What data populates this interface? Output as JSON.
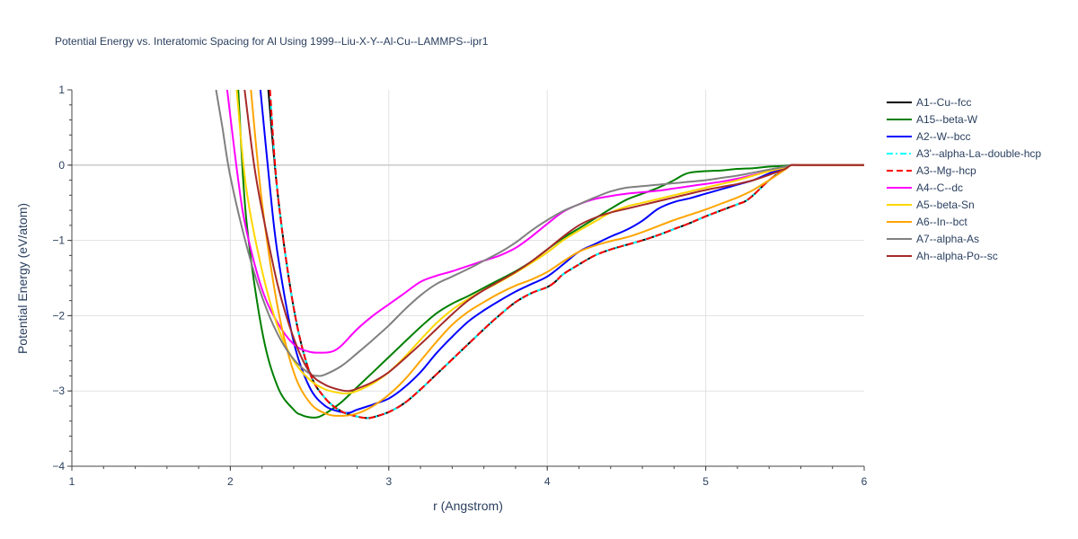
{
  "chart_data": {
    "type": "line",
    "title": "Potential Energy vs. Interatomic Spacing for Al Using 1999--Liu-X-Y--Al-Cu--LAMMPS--ipr1",
    "xlabel": "r (Angstrom)",
    "ylabel": "Potential Energy (eV/atom)",
    "xlim": [
      1,
      6
    ],
    "ylim": [
      -4,
      1
    ],
    "x_ticks": [
      "1",
      "2",
      "3",
      "4",
      "5",
      "6"
    ],
    "y_ticks": [
      "1",
      "0",
      "−1",
      "−2",
      "−3",
      "−4"
    ],
    "grid": true,
    "legend_position": "right",
    "series": [
      {
        "name": "A1--Cu--fcc",
        "color": "#000000",
        "dash": "solid",
        "x": [
          2.24,
          2.3,
          2.4,
          2.5,
          2.6,
          2.7,
          2.8,
          2.86,
          2.9,
          3.0,
          3.1,
          3.2,
          3.3,
          3.4,
          3.5,
          3.6,
          3.7,
          3.8,
          3.9,
          4.0,
          4.05,
          4.1,
          4.2,
          4.3,
          4.4,
          4.5,
          4.6,
          4.7,
          4.8,
          4.9,
          5.0,
          5.1,
          5.2,
          5.25,
          5.3,
          5.4,
          5.5,
          5.54,
          5.6,
          5.7,
          5.8,
          5.9,
          6.0
        ],
        "y": [
          1.0,
          -0.4,
          -1.9,
          -2.75,
          -3.1,
          -3.27,
          -3.34,
          -3.36,
          -3.35,
          -3.28,
          -3.16,
          -2.98,
          -2.78,
          -2.58,
          -2.38,
          -2.18,
          -1.99,
          -1.82,
          -1.7,
          -1.62,
          -1.55,
          -1.45,
          -1.32,
          -1.2,
          -1.12,
          -1.06,
          -1.0,
          -0.93,
          -0.85,
          -0.77,
          -0.68,
          -0.6,
          -0.52,
          -0.48,
          -0.4,
          -0.2,
          -0.05,
          0.0,
          0.0,
          0.0,
          0.0,
          0.0,
          0.0
        ]
      },
      {
        "name": "A15--beta-W",
        "color": "#008000",
        "dash": "solid",
        "x": [
          2.05,
          2.1,
          2.2,
          2.3,
          2.4,
          2.45,
          2.5,
          2.55,
          2.6,
          2.7,
          2.8,
          2.9,
          3.0,
          3.1,
          3.2,
          3.3,
          3.4,
          3.5,
          3.6,
          3.7,
          3.8,
          3.9,
          4.0,
          4.1,
          4.2,
          4.3,
          4.4,
          4.5,
          4.6,
          4.7,
          4.8,
          4.85,
          4.9,
          5.0,
          5.1,
          5.2,
          5.3,
          5.4,
          5.5,
          5.54,
          5.6,
          5.7,
          5.8,
          5.9,
          6.0
        ],
        "y": [
          1.0,
          -0.7,
          -2.2,
          -2.95,
          -3.25,
          -3.32,
          -3.35,
          -3.35,
          -3.3,
          -3.15,
          -2.95,
          -2.75,
          -2.55,
          -2.35,
          -2.15,
          -1.97,
          -1.84,
          -1.74,
          -1.63,
          -1.52,
          -1.41,
          -1.28,
          -1.12,
          -0.97,
          -0.84,
          -0.71,
          -0.58,
          -0.46,
          -0.38,
          -0.3,
          -0.2,
          -0.14,
          -0.1,
          -0.08,
          -0.07,
          -0.05,
          -0.04,
          -0.02,
          -0.01,
          0.0,
          0.0,
          0.0,
          0.0,
          0.0,
          0.0
        ]
      },
      {
        "name": "A2--W--bcc",
        "color": "#0000ff",
        "dash": "solid",
        "x": [
          2.19,
          2.25,
          2.3,
          2.4,
          2.5,
          2.6,
          2.7,
          2.75,
          2.8,
          2.9,
          3.0,
          3.1,
          3.2,
          3.3,
          3.4,
          3.5,
          3.6,
          3.7,
          3.8,
          3.9,
          4.0,
          4.1,
          4.2,
          4.3,
          4.4,
          4.5,
          4.6,
          4.7,
          4.8,
          4.9,
          5.0,
          5.1,
          5.2,
          5.3,
          5.4,
          5.5,
          5.54,
          5.6,
          5.7,
          5.8,
          5.9,
          6.0
        ],
        "y": [
          1.0,
          -0.3,
          -1.2,
          -2.35,
          -2.95,
          -3.2,
          -3.28,
          -3.29,
          -3.25,
          -3.18,
          -3.1,
          -2.95,
          -2.75,
          -2.5,
          -2.28,
          -2.08,
          -1.93,
          -1.8,
          -1.68,
          -1.58,
          -1.48,
          -1.32,
          -1.15,
          -1.05,
          -0.95,
          -0.86,
          -0.74,
          -0.58,
          -0.49,
          -0.44,
          -0.38,
          -0.32,
          -0.26,
          -0.2,
          -0.11,
          -0.03,
          0.0,
          0.0,
          0.0,
          0.0,
          0.0,
          0.0
        ]
      },
      {
        "name": "A3'--alpha-La--double-hcp",
        "color": "#00ffff",
        "dash": "dashdot",
        "x": [
          2.25,
          2.3,
          2.4,
          2.5,
          2.6,
          2.7,
          2.8,
          2.86,
          2.9,
          3.0,
          3.1,
          3.2,
          3.3,
          3.4,
          3.5,
          3.6,
          3.7,
          3.8,
          3.9,
          4.0,
          4.05,
          4.1,
          4.2,
          4.3,
          4.4,
          4.5,
          4.6,
          4.7,
          4.8,
          4.9,
          5.0,
          5.1,
          5.2,
          5.25,
          5.3,
          5.4,
          5.5,
          5.54,
          5.6,
          5.7,
          5.8,
          5.9,
          6.0
        ],
        "y": [
          1.0,
          -0.4,
          -1.9,
          -2.75,
          -3.1,
          -3.27,
          -3.34,
          -3.36,
          -3.35,
          -3.28,
          -3.16,
          -2.98,
          -2.78,
          -2.58,
          -2.38,
          -2.18,
          -1.99,
          -1.82,
          -1.7,
          -1.62,
          -1.55,
          -1.45,
          -1.32,
          -1.2,
          -1.12,
          -1.06,
          -1.0,
          -0.93,
          -0.85,
          -0.77,
          -0.68,
          -0.6,
          -0.52,
          -0.48,
          -0.4,
          -0.2,
          -0.05,
          0.0,
          0.0,
          0.0,
          0.0,
          0.0,
          0.0
        ]
      },
      {
        "name": "A3--Mg--hcp",
        "color": "#ff0000",
        "dash": "dash",
        "x": [
          2.25,
          2.3,
          2.4,
          2.5,
          2.6,
          2.7,
          2.8,
          2.86,
          2.9,
          3.0,
          3.1,
          3.2,
          3.3,
          3.4,
          3.5,
          3.6,
          3.7,
          3.8,
          3.9,
          4.0,
          4.05,
          4.1,
          4.2,
          4.3,
          4.4,
          4.5,
          4.6,
          4.7,
          4.8,
          4.9,
          5.0,
          5.1,
          5.2,
          5.25,
          5.3,
          5.4,
          5.5,
          5.54,
          5.6,
          5.7,
          5.8,
          5.9,
          6.0
        ],
        "y": [
          1.0,
          -0.4,
          -1.9,
          -2.75,
          -3.1,
          -3.27,
          -3.34,
          -3.36,
          -3.35,
          -3.28,
          -3.16,
          -2.98,
          -2.78,
          -2.58,
          -2.38,
          -2.18,
          -1.99,
          -1.82,
          -1.7,
          -1.62,
          -1.55,
          -1.45,
          -1.32,
          -1.2,
          -1.12,
          -1.06,
          -1.0,
          -0.93,
          -0.85,
          -0.77,
          -0.68,
          -0.6,
          -0.52,
          -0.48,
          -0.4,
          -0.2,
          -0.05,
          0.0,
          0.0,
          0.0,
          0.0,
          0.0,
          0.0
        ]
      },
      {
        "name": "A4--C--dc",
        "color": "#ff00ff",
        "dash": "solid",
        "x": [
          1.98,
          2.05,
          2.1,
          2.2,
          2.3,
          2.4,
          2.5,
          2.6,
          2.65,
          2.7,
          2.8,
          2.9,
          3.0,
          3.1,
          3.2,
          3.3,
          3.4,
          3.5,
          3.6,
          3.7,
          3.8,
          3.9,
          4.0,
          4.1,
          4.2,
          4.3,
          4.4,
          4.5,
          4.6,
          4.7,
          4.8,
          4.9,
          5.0,
          5.1,
          5.2,
          5.3,
          5.4,
          5.5,
          5.54,
          5.6,
          5.7,
          5.8,
          5.9,
          6.0
        ],
        "y": [
          1.0,
          -0.2,
          -0.85,
          -1.65,
          -2.1,
          -2.38,
          -2.48,
          -2.49,
          -2.47,
          -2.4,
          -2.18,
          -2.0,
          -1.85,
          -1.7,
          -1.55,
          -1.47,
          -1.41,
          -1.34,
          -1.27,
          -1.2,
          -1.1,
          -0.95,
          -0.78,
          -0.62,
          -0.52,
          -0.45,
          -0.41,
          -0.38,
          -0.36,
          -0.34,
          -0.31,
          -0.28,
          -0.25,
          -0.22,
          -0.18,
          -0.13,
          -0.08,
          -0.03,
          0.0,
          0.0,
          0.0,
          0.0,
          0.0,
          0.0
        ]
      },
      {
        "name": "A5--beta-Sn",
        "color": "#ffd700",
        "dash": "solid",
        "x": [
          2.04,
          2.1,
          2.2,
          2.3,
          2.4,
          2.5,
          2.6,
          2.7,
          2.75,
          2.8,
          2.9,
          3.0,
          3.1,
          3.2,
          3.3,
          3.4,
          3.5,
          3.6,
          3.7,
          3.8,
          3.9,
          4.0,
          4.1,
          4.2,
          4.3,
          4.4,
          4.5,
          4.6,
          4.7,
          4.8,
          4.9,
          5.0,
          5.1,
          5.2,
          5.3,
          5.4,
          5.5,
          5.54,
          5.6,
          5.7,
          5.8,
          5.9,
          6.0
        ],
        "y": [
          1.0,
          -0.3,
          -1.4,
          -2.15,
          -2.6,
          -2.85,
          -2.98,
          -3.03,
          -3.03,
          -3.0,
          -2.9,
          -2.75,
          -2.55,
          -2.32,
          -2.1,
          -1.92,
          -1.78,
          -1.66,
          -1.55,
          -1.43,
          -1.3,
          -1.16,
          -1.0,
          -0.87,
          -0.75,
          -0.63,
          -0.55,
          -0.5,
          -0.45,
          -0.4,
          -0.35,
          -0.3,
          -0.25,
          -0.2,
          -0.14,
          -0.08,
          -0.03,
          0.0,
          0.0,
          0.0,
          0.0,
          0.0,
          0.0
        ]
      },
      {
        "name": "A6--In--bct",
        "color": "#ffa500",
        "dash": "solid",
        "x": [
          2.13,
          2.2,
          2.3,
          2.4,
          2.5,
          2.6,
          2.7,
          2.8,
          2.9,
          3.0,
          3.1,
          3.2,
          3.3,
          3.4,
          3.5,
          3.6,
          3.7,
          3.8,
          3.9,
          4.0,
          4.1,
          4.2,
          4.3,
          4.4,
          4.5,
          4.6,
          4.7,
          4.8,
          4.9,
          5.0,
          5.1,
          5.2,
          5.3,
          5.4,
          5.5,
          5.54,
          5.6,
          5.7,
          5.8,
          5.9,
          6.0
        ],
        "y": [
          1.0,
          -0.5,
          -1.9,
          -2.75,
          -3.15,
          -3.3,
          -3.33,
          -3.3,
          -3.2,
          -3.05,
          -2.85,
          -2.6,
          -2.35,
          -2.12,
          -1.95,
          -1.82,
          -1.7,
          -1.6,
          -1.52,
          -1.42,
          -1.28,
          -1.15,
          -1.07,
          -1.01,
          -0.96,
          -0.89,
          -0.81,
          -0.73,
          -0.66,
          -0.59,
          -0.51,
          -0.43,
          -0.33,
          -0.2,
          -0.06,
          0.0,
          0.0,
          0.0,
          0.0,
          0.0,
          0.0
        ]
      },
      {
        "name": "A7--alpha-As",
        "color": "#808080",
        "dash": "solid",
        "x": [
          1.91,
          1.95,
          2.0,
          2.1,
          2.2,
          2.3,
          2.4,
          2.5,
          2.55,
          2.6,
          2.7,
          2.8,
          2.9,
          3.0,
          3.1,
          3.2,
          3.3,
          3.4,
          3.5,
          3.6,
          3.7,
          3.8,
          3.9,
          4.0,
          4.1,
          4.2,
          4.3,
          4.4,
          4.5,
          4.6,
          4.7,
          4.8,
          4.9,
          5.0,
          5.1,
          5.2,
          5.3,
          5.4,
          5.5,
          5.54,
          5.6,
          5.7,
          5.8,
          5.9,
          6.0
        ],
        "y": [
          1.0,
          0.5,
          -0.15,
          -1.05,
          -1.75,
          -2.25,
          -2.58,
          -2.77,
          -2.8,
          -2.78,
          -2.67,
          -2.5,
          -2.32,
          -2.13,
          -1.92,
          -1.73,
          -1.58,
          -1.48,
          -1.38,
          -1.27,
          -1.16,
          -1.03,
          -0.87,
          -0.73,
          -0.61,
          -0.52,
          -0.43,
          -0.35,
          -0.3,
          -0.28,
          -0.26,
          -0.24,
          -0.22,
          -0.2,
          -0.17,
          -0.14,
          -0.1,
          -0.06,
          -0.02,
          0.0,
          0.0,
          0.0,
          0.0,
          0.0,
          0.0
        ]
      },
      {
        "name": "Ah--alpha-Po--sc",
        "color": "#a52a2a",
        "dash": "solid",
        "x": [
          2.09,
          2.15,
          2.2,
          2.3,
          2.4,
          2.5,
          2.6,
          2.7,
          2.75,
          2.8,
          2.9,
          3.0,
          3.1,
          3.2,
          3.3,
          3.4,
          3.5,
          3.6,
          3.7,
          3.8,
          3.9,
          4.0,
          4.1,
          4.2,
          4.3,
          4.4,
          4.5,
          4.6,
          4.7,
          4.8,
          4.9,
          5.0,
          5.1,
          5.2,
          5.3,
          5.4,
          5.5,
          5.54,
          5.6,
          5.7,
          5.8,
          5.9,
          6.0
        ],
        "y": [
          1.0,
          0.0,
          -0.6,
          -1.6,
          -2.3,
          -2.75,
          -2.92,
          -2.99,
          -3.0,
          -2.97,
          -2.88,
          -2.75,
          -2.57,
          -2.38,
          -2.18,
          -1.98,
          -1.8,
          -1.66,
          -1.54,
          -1.42,
          -1.28,
          -1.12,
          -0.95,
          -0.8,
          -0.7,
          -0.63,
          -0.58,
          -0.53,
          -0.48,
          -0.43,
          -0.38,
          -0.33,
          -0.29,
          -0.25,
          -0.2,
          -0.13,
          -0.05,
          0.0,
          0.0,
          0.0,
          0.0,
          0.0,
          0.0
        ]
      }
    ]
  }
}
